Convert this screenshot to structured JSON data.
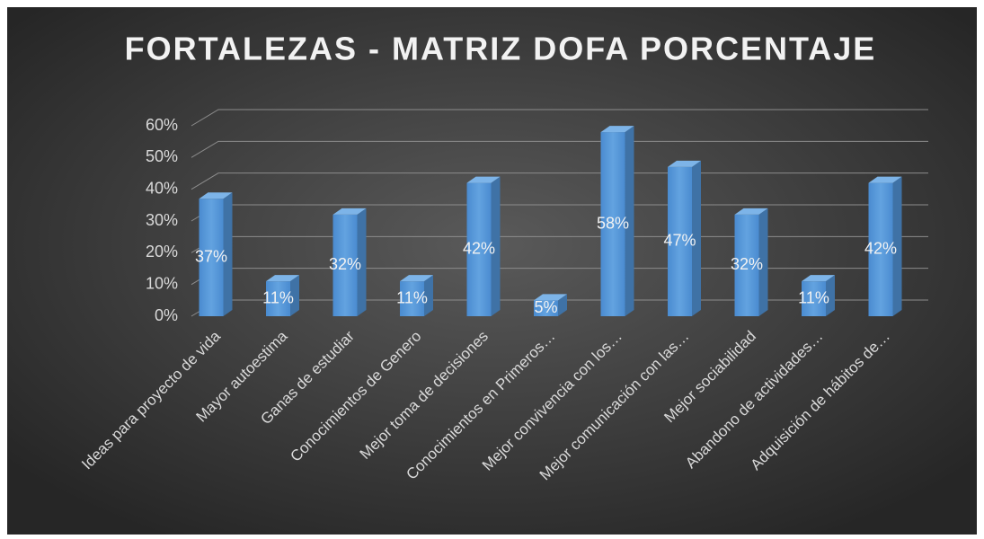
{
  "chart_data": {
    "type": "bar3d",
    "title": "FORTALEZAS - MATRIZ DOFA PORCENTAJE",
    "categories": [
      "Ideas para proyecto de vida",
      "Mayor autoestima",
      "Ganas de estudiar",
      "Conocimientos de Genero",
      "Mejor toma de decisiones",
      "Conocimientos en Primeros…",
      "Mejor convivencia con los…",
      "Mejor comunicación con las…",
      "Mejor sociabilidad",
      "Abandono de actividades…",
      "Adquisición de hábitos de…"
    ],
    "values": [
      37,
      11,
      32,
      11,
      42,
      5,
      58,
      47,
      32,
      11,
      42
    ],
    "value_labels": [
      "37%",
      "11%",
      "32%",
      "11%",
      "42%",
      "5%",
      "58%",
      "47%",
      "32%",
      "11%",
      "42%"
    ],
    "color": "#5b9bd5",
    "ylim": [
      0,
      60
    ],
    "yticks": [
      {
        "value": 0,
        "label": "0%"
      },
      {
        "value": 10,
        "label": "10%"
      },
      {
        "value": 20,
        "label": "20%"
      },
      {
        "value": 30,
        "label": "30%"
      },
      {
        "value": 40,
        "label": "40%"
      },
      {
        "value": 50,
        "label": "50%"
      },
      {
        "value": 60,
        "label": "60%"
      }
    ],
    "grid": true
  }
}
